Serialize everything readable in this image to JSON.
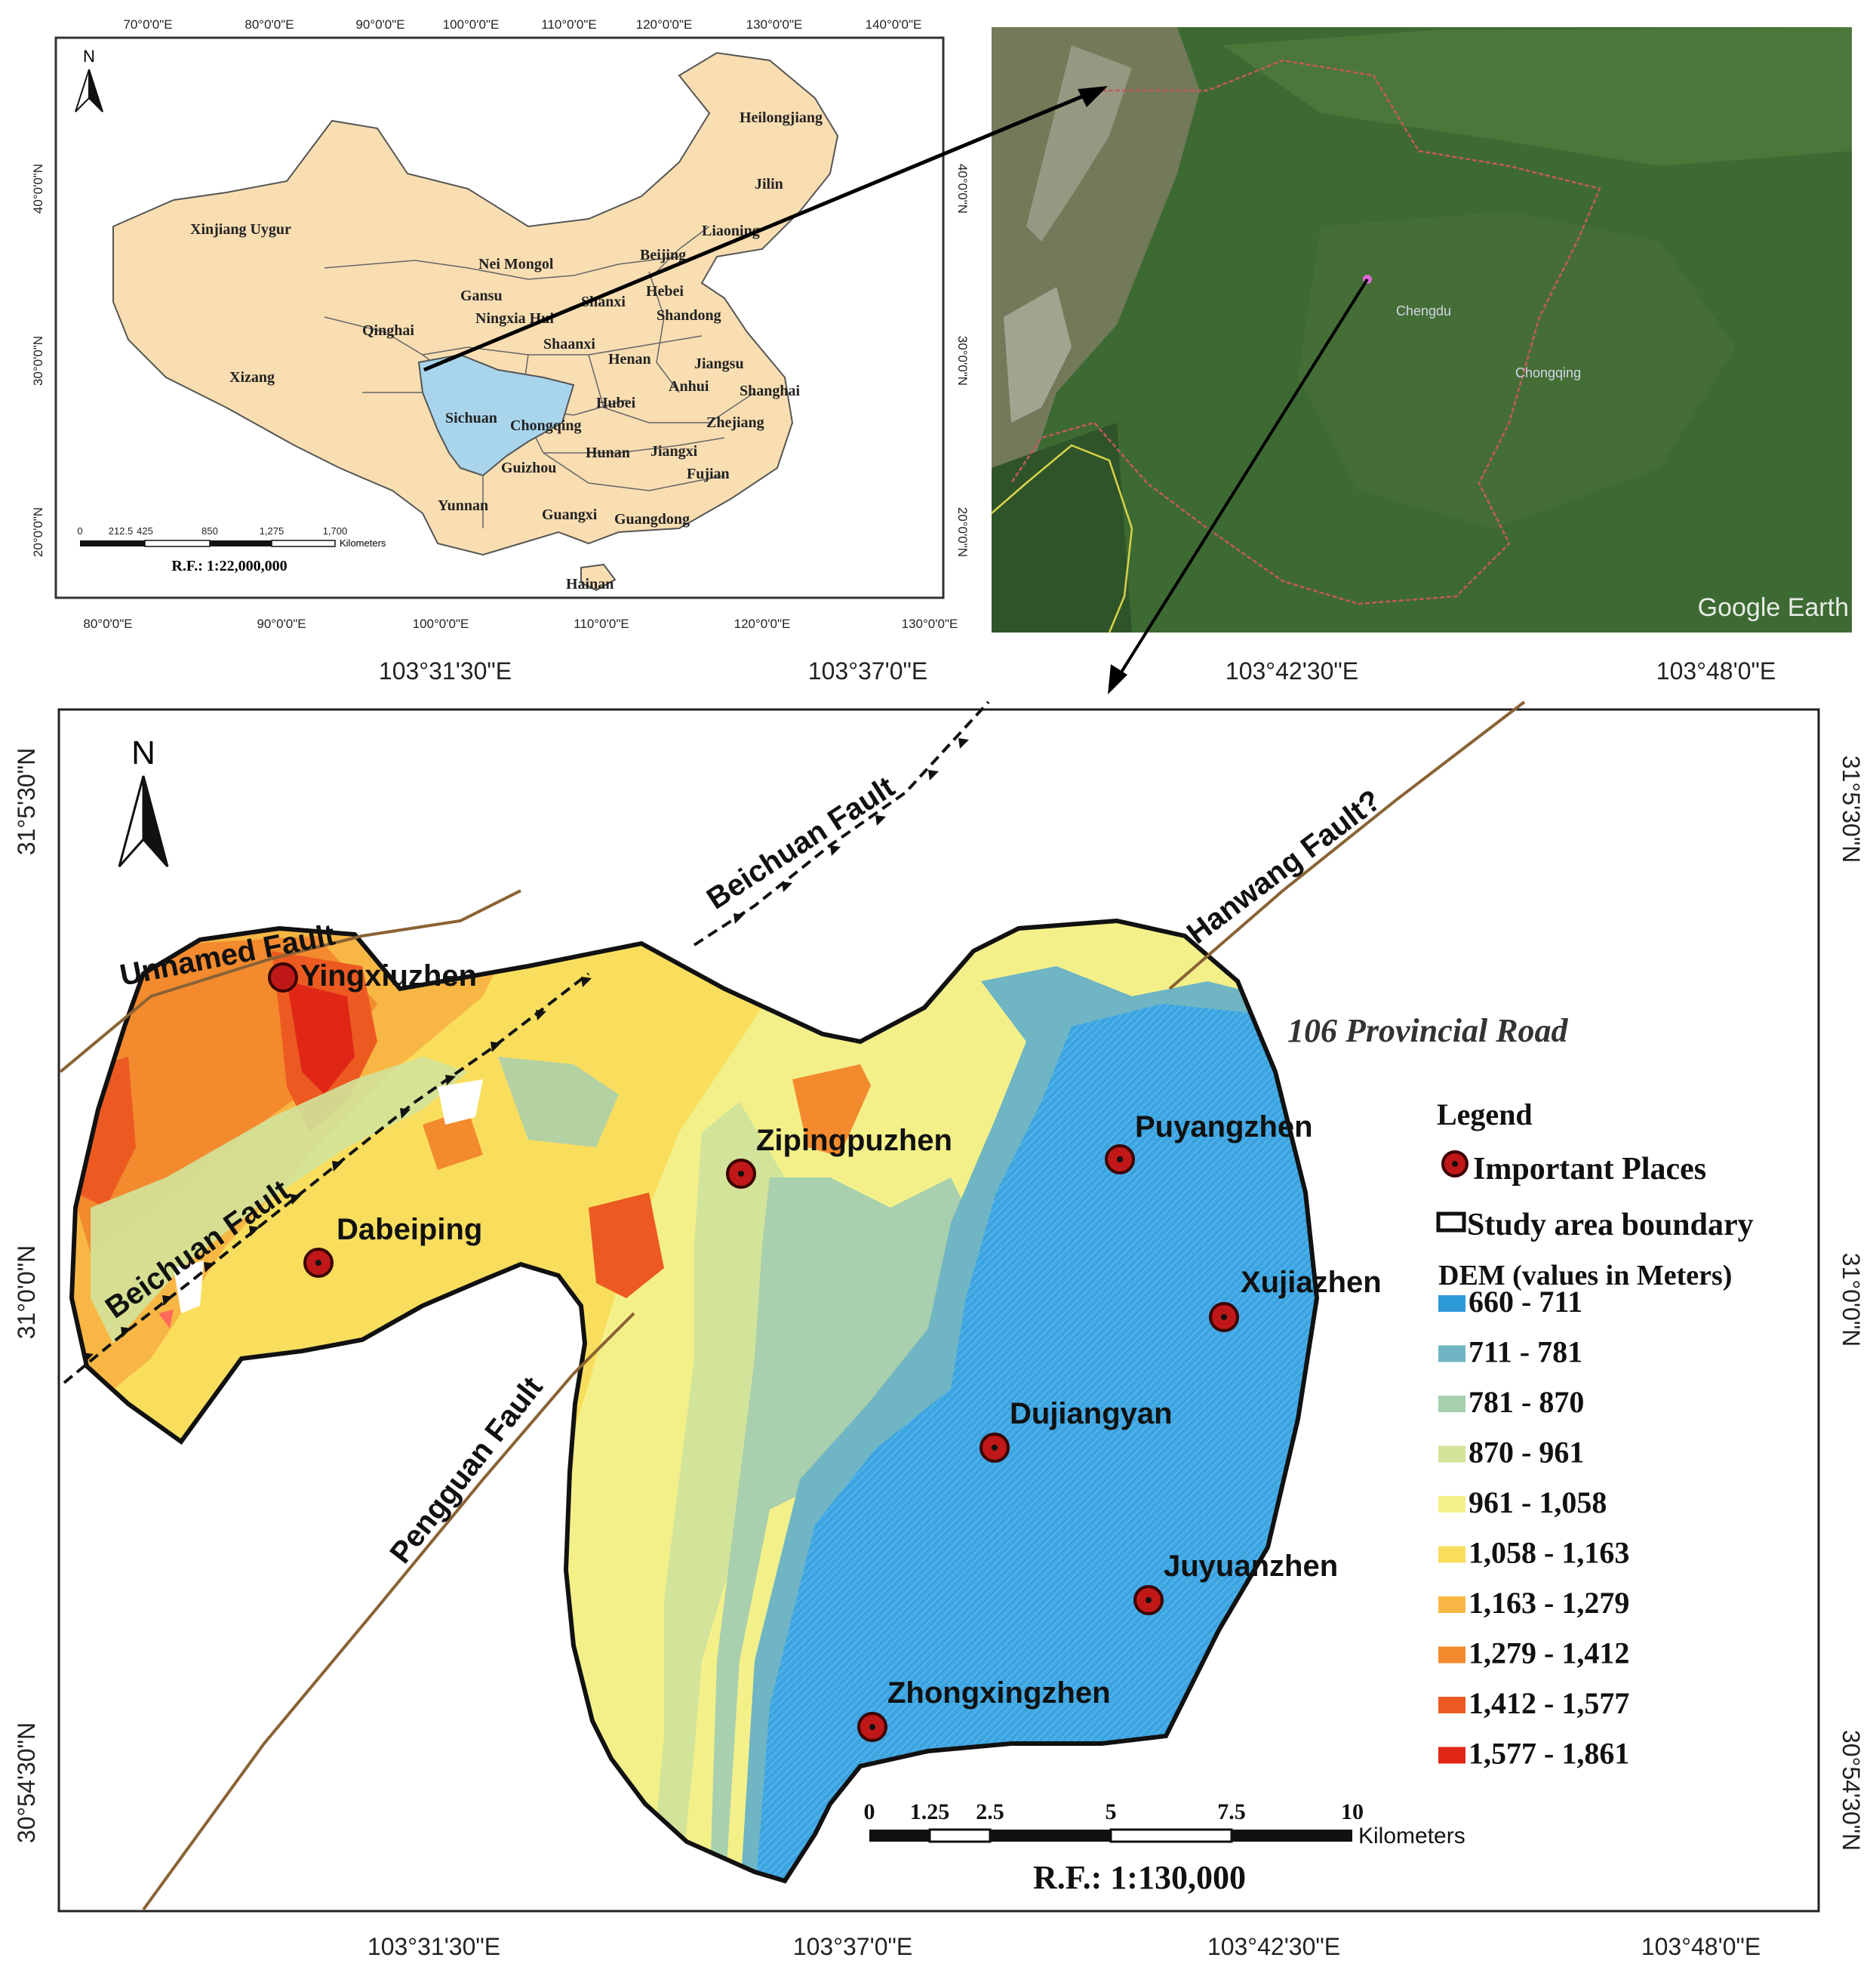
{
  "inset_china": {
    "top_ticks": [
      "70°0'0\"E",
      "80°0'0\"E",
      "90°0'0\"E",
      "100°0'0\"E",
      "110°0'0\"E",
      "120°0'0\"E",
      "130°0'0\"E",
      "140°0'0\"E"
    ],
    "bottom_ticks": [
      "80°0'0\"E",
      "90°0'0\"E",
      "100°0'0\"E",
      "110°0'0\"E",
      "120°0'0\"E",
      "130°0'0\"E"
    ],
    "left_ticks": [
      "40°0'0\"N",
      "30°0'0\"N",
      "20°0'0\"N"
    ],
    "right_ticks": [
      "40°0'0\"N",
      "30°0'0\"N",
      "20°0'0\"N"
    ],
    "north": "N",
    "provinces": [
      "Heilongjiang",
      "Jilin",
      "Liaoning",
      "Xinjiang Uygur",
      "Nei Mongol",
      "Beijing",
      "Hebei",
      "Gansu",
      "Shanxi",
      "Shandong",
      "Qinghai",
      "Ningxia Hui",
      "Shaanxi",
      "Henan",
      "Jiangsu",
      "Anhui",
      "Shanghai",
      "Xizang",
      "Sichuan",
      "Hubei",
      "Chongqing",
      "Zhejiang",
      "Hunan",
      "Jiangxi",
      "Guizhou",
      "Fujian",
      "Yunnan",
      "Guangxi",
      "Guangdong",
      "Hainan"
    ],
    "scale_ticks": [
      "0",
      "212.5",
      "425",
      "850",
      "1,275",
      "1,700"
    ],
    "scale_unit": "Kilometers",
    "rf": "R.F.: 1:22,000,000"
  },
  "satellite": {
    "watermark": "Google Earth",
    "place_labels": [
      "Chengdu",
      "Chongqing"
    ]
  },
  "main_map": {
    "top_ticks": [
      "103°31'30\"E",
      "103°37'0\"E",
      "103°42'30\"E",
      "103°48'0\"E"
    ],
    "bottom_ticks": [
      "103°31'30\"E",
      "103°37'0\"E",
      "103°42'30\"E",
      "103°48'0\"E"
    ],
    "left_ticks": [
      "31°5'30\"N",
      "31°0'0\"N",
      "30°54'30\"N"
    ],
    "right_ticks": [
      "31°5'30\"N",
      "31°0'0\"N",
      "30°54'30\"N"
    ],
    "north": "N",
    "faults": {
      "beichuan_upper": "Beichuan Fault",
      "beichuan_lower": "Beichuan Fault",
      "hanwang": "Hanwang Fault?",
      "unnamed": "Unnamed Fault",
      "pengguan": "Pengguan Fault"
    },
    "road": "106 Provincial Road",
    "places": [
      "Yingxiuzhen",
      "Zipingpuzhen",
      "Puyangzhen",
      "Dabeiping",
      "Xujiazhen",
      "Dujiangyan",
      "Juyuanzhen",
      "Zhongxingzhen"
    ],
    "legend": {
      "title": "Legend",
      "important_places": "Important Places",
      "boundary": "Study area boundary",
      "dem_title": "DEM (values in Meters)",
      "classes": [
        {
          "label": "660 - 711",
          "color": "#2e9ad8"
        },
        {
          "label": "711 - 781",
          "color": "#6fb5c4"
        },
        {
          "label": "781 - 870",
          "color": "#a8cfae"
        },
        {
          "label": "870 - 961",
          "color": "#d2e39a"
        },
        {
          "label": "961 - 1,058",
          "color": "#f3f08a"
        },
        {
          "label": "1,058 - 1,163",
          "color": "#f9de5e"
        },
        {
          "label": "1,163 - 1,279",
          "color": "#f8b744"
        },
        {
          "label": "1,279 - 1,412",
          "color": "#f38a2e"
        },
        {
          "label": "1,412 - 1,577",
          "color": "#ec5a22"
        },
        {
          "label": "1,577 - 1,861",
          "color": "#e02716"
        }
      ]
    },
    "scale_ticks": [
      "0",
      "1.25",
      "2.5",
      "5",
      "7.5",
      "10"
    ],
    "scale_unit": "Kilometers",
    "rf": "R.F.: 1:130,000"
  }
}
